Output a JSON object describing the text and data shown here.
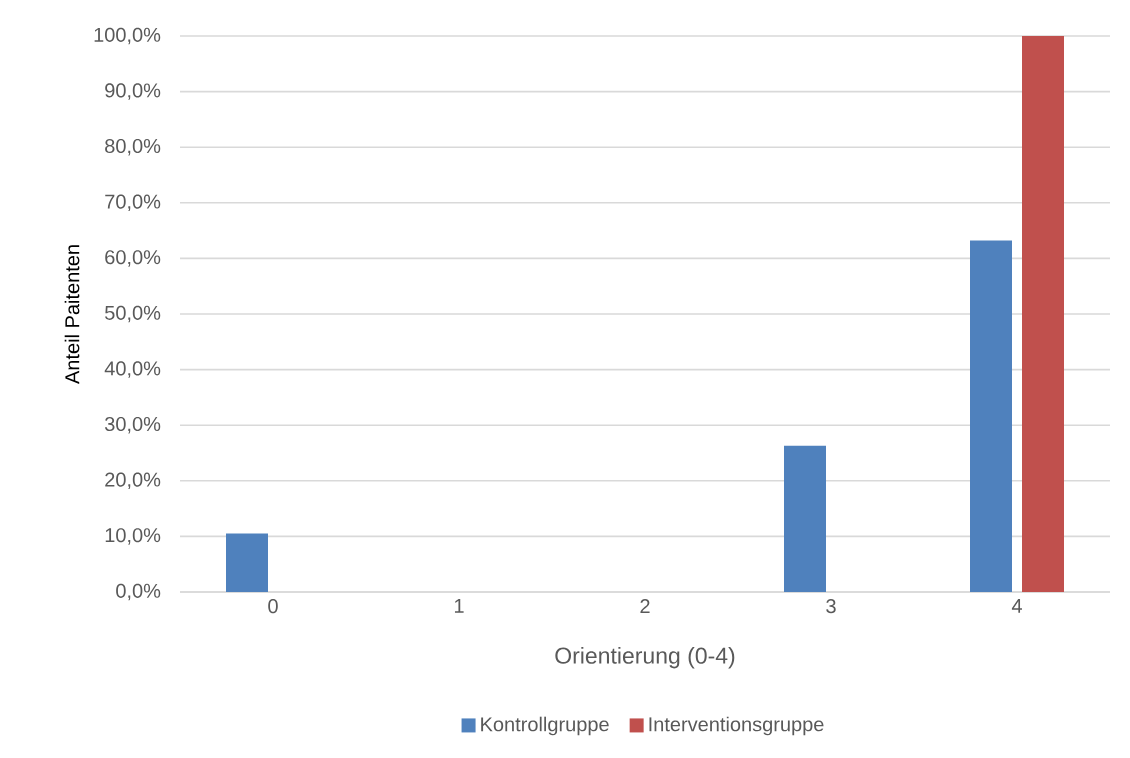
{
  "chart_data": {
    "type": "bar",
    "xlabel": "Orientierung (0-4)",
    "ylabel": "Anteil Paitenten",
    "categories": [
      "0",
      "1",
      "2",
      "3",
      "4"
    ],
    "series": [
      {
        "name": "Kontrollgruppe",
        "color": "#4f81bd",
        "values": [
          10.5,
          0,
          0,
          26.3,
          63.2
        ]
      },
      {
        "name": "Interventionsgruppe",
        "color": "#c0504d",
        "values": [
          0,
          0,
          0,
          0,
          100
        ]
      }
    ],
    "ylim": [
      0,
      100
    ],
    "yticks": [
      {
        "value": 0,
        "label": "0,0%"
      },
      {
        "value": 10,
        "label": "10,0%"
      },
      {
        "value": 20,
        "label": "20,0%"
      },
      {
        "value": 30,
        "label": "30,0%"
      },
      {
        "value": 40,
        "label": "40,0%"
      },
      {
        "value": 50,
        "label": "50,0%"
      },
      {
        "value": 60,
        "label": "60,0%"
      },
      {
        "value": 70,
        "label": "70,0%"
      },
      {
        "value": 80,
        "label": "80,0%"
      },
      {
        "value": 90,
        "label": "90,0%"
      },
      {
        "value": 100,
        "label": "100,0%"
      }
    ],
    "grid": "y",
    "legend": "bottom"
  }
}
